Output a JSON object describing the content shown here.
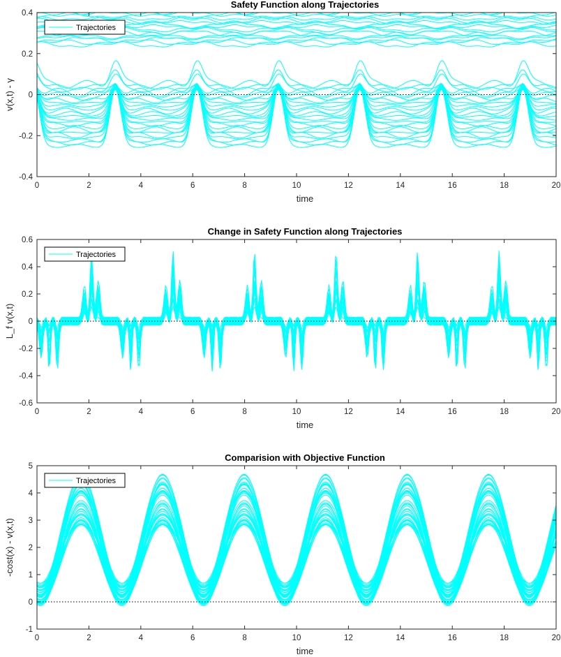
{
  "figure": {
    "background": "#ffffff",
    "trace_color": "#00ffff",
    "axis_color": "#262626"
  },
  "chart_data": [
    {
      "type": "line",
      "title": "Safety Function along Trajectories",
      "xlabel": "time",
      "ylabel": "v(x,t) - γ",
      "xlim": [
        0,
        20
      ],
      "ylim": [
        -0.4,
        0.4
      ],
      "xticks": [
        0,
        2,
        4,
        6,
        8,
        10,
        12,
        14,
        16,
        18,
        20
      ],
      "yticks": [
        -0.4,
        -0.2,
        0,
        0.2,
        0.4
      ],
      "xtick_labels": [
        "0",
        "2",
        "4",
        "6",
        "8",
        "10",
        "12",
        "14",
        "16",
        "18",
        "20"
      ],
      "ytick_labels": [
        "-0.4",
        "-0.2",
        "0",
        "0.2",
        "0.4"
      ],
      "legend": [
        "Trajectories"
      ],
      "legend_position": "top-left",
      "reference_line": {
        "y": 0,
        "style": "dotted",
        "color": "#000000"
      },
      "series_summary": {
        "kind": "safety",
        "period": 3.14,
        "num_trajectories": 40,
        "upper_band": [
          0.25,
          0.41
        ],
        "lower_band_min": [
          -0.25,
          0.05
        ],
        "peak_value": 0.05
      },
      "grid": false
    },
    {
      "type": "line",
      "title": "Change in Safety Function along Trajectories",
      "xlabel": "time",
      "ylabel": "L_f v(x,t)",
      "xlim": [
        0,
        20
      ],
      "ylim": [
        -0.6,
        0.6
      ],
      "xticks": [
        0,
        2,
        4,
        6,
        8,
        10,
        12,
        14,
        16,
        18,
        20
      ],
      "yticks": [
        -0.6,
        -0.4,
        -0.2,
        0,
        0.2,
        0.4,
        0.6
      ],
      "xtick_labels": [
        "0",
        "2",
        "4",
        "6",
        "8",
        "10",
        "12",
        "14",
        "16",
        "18",
        "20"
      ],
      "ytick_labels": [
        "-0.6",
        "-0.4",
        "-0.2",
        "0",
        "0.2",
        "0.4",
        "0.6"
      ],
      "legend": [
        "Trajectories"
      ],
      "legend_position": "top-left",
      "reference_line": {
        "y": 0,
        "style": "dotted",
        "color": "#000000"
      },
      "series_summary": {
        "kind": "change",
        "period": 3.14,
        "num_trajectories": 30,
        "max_value": 0.52,
        "min_value": -0.4
      },
      "grid": false
    },
    {
      "type": "line",
      "title": "Comparision with Objective Function",
      "xlabel": "time",
      "ylabel": "-cost(x) - v(x,t)",
      "xlim": [
        0,
        20
      ],
      "ylim": [
        -1,
        5
      ],
      "xticks": [
        0,
        2,
        4,
        6,
        8,
        10,
        12,
        14,
        16,
        18,
        20
      ],
      "yticks": [
        -1,
        0,
        1,
        2,
        3,
        4,
        5
      ],
      "xtick_labels": [
        "0",
        "2",
        "4",
        "6",
        "8",
        "10",
        "12",
        "14",
        "16",
        "18",
        "20"
      ],
      "ytick_labels": [
        "-1",
        "0",
        "1",
        "2",
        "3",
        "4",
        "5"
      ],
      "legend": [
        "Trajectories"
      ],
      "legend_position": "top-left",
      "reference_line": {
        "y": 0,
        "style": "dotted",
        "color": "#000000"
      },
      "series_summary": {
        "kind": "objective",
        "period": 3.14,
        "num_trajectories": 40,
        "peak_range": [
          2.8,
          4.7
        ],
        "trough_range": [
          -0.15,
          0.7
        ]
      },
      "grid": false
    }
  ]
}
